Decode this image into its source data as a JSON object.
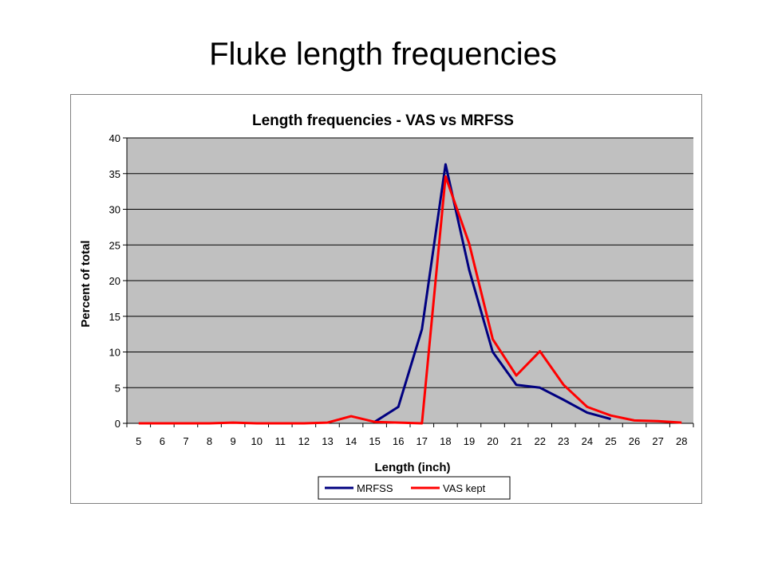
{
  "slide": {
    "title": "Fluke length frequencies"
  },
  "chart_data": {
    "type": "line",
    "title": "Length frequencies - VAS vs MRFSS",
    "xlabel": "Length (inch)",
    "ylabel": "Percent of total",
    "x": [
      5,
      6,
      7,
      8,
      9,
      10,
      11,
      12,
      13,
      14,
      15,
      16,
      17,
      18,
      19,
      20,
      21,
      22,
      23,
      24,
      25,
      26,
      27,
      28
    ],
    "ylim": [
      0,
      40
    ],
    "yticks": [
      0,
      5,
      10,
      15,
      20,
      25,
      30,
      35,
      40
    ],
    "grid": true,
    "legend_position": "bottom",
    "plot_background": "#c0c0c0",
    "series": [
      {
        "name": "MRFSS",
        "color": "#000080",
        "values": [
          null,
          null,
          null,
          null,
          null,
          null,
          null,
          null,
          null,
          null,
          0.2,
          2.3,
          13.2,
          36.3,
          21.5,
          10.0,
          5.4,
          5.0,
          3.3,
          1.5,
          0.6,
          null,
          null,
          null
        ]
      },
      {
        "name": "VAS kept",
        "color": "#ff0000",
        "values": [
          0,
          0,
          0,
          0,
          0.1,
          0,
          0,
          0,
          0.1,
          1.0,
          0.2,
          0.1,
          0,
          34.6,
          25.2,
          11.8,
          6.7,
          10.1,
          5.4,
          2.3,
          1.1,
          0.4,
          0.3,
          0.1
        ]
      }
    ]
  }
}
